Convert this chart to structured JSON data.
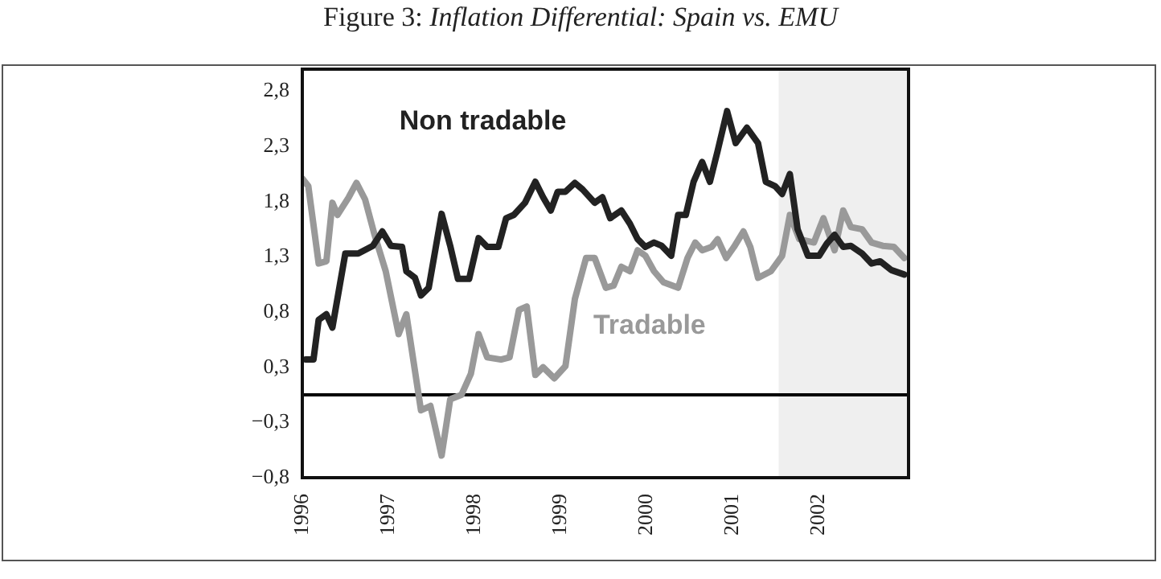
{
  "chart_data": {
    "type": "line",
    "title": "Figure 3: Inflation Differential: Spain vs. EMU",
    "xlim": [
      1996,
      2003.05
    ],
    "xticks": [
      1996,
      1997,
      1998,
      1999,
      2000,
      2001,
      2002
    ],
    "ylim": [
      -0.75,
      2.95
    ],
    "yticks": [
      {
        "value": -0.75,
        "label": "−0,8"
      },
      {
        "value": -0.25,
        "label": "−0,3"
      },
      {
        "value": 0.25,
        "label": "0,3"
      },
      {
        "value": 0.75,
        "label": "0,8"
      },
      {
        "value": 1.25,
        "label": "1,3"
      },
      {
        "value": 1.75,
        "label": "1,8"
      },
      {
        "value": 2.25,
        "label": "2,3"
      },
      {
        "value": 2.75,
        "label": "2,8"
      }
    ],
    "grid": false,
    "legend": false,
    "marker": "none",
    "line_style": "solid",
    "ref_lines": [
      {
        "axis": "y",
        "value": 0,
        "color": "#000000"
      }
    ],
    "bands": [
      {
        "axis": "x",
        "from": 2001.54,
        "to": 2003.05,
        "color": "#efefef"
      }
    ],
    "series": [
      {
        "name": "Non tradable",
        "color": "#222222",
        "x": [
          1996.04,
          1996.13,
          1996.19,
          1996.28,
          1996.35,
          1996.5,
          1996.65,
          1996.82,
          1996.93,
          1997.03,
          1997.16,
          1997.21,
          1997.31,
          1997.38,
          1997.47,
          1997.62,
          1997.72,
          1997.81,
          1997.94,
          1998.05,
          1998.15,
          1998.28,
          1998.37,
          1998.46,
          1998.59,
          1998.71,
          1998.8,
          1998.89,
          1998.97,
          1999.06,
          1999.17,
          1999.26,
          1999.4,
          1999.49,
          1999.58,
          1999.71,
          1999.81,
          1999.9,
          1999.99,
          2000.09,
          2000.18,
          2000.29,
          2000.37,
          2000.46,
          2000.55,
          2000.65,
          2000.74,
          2000.83,
          2000.94,
          2001.04,
          2001.17,
          2001.3,
          2001.39,
          2001.5,
          2001.58,
          2001.67,
          2001.76,
          2001.88,
          2002.01,
          2002.1,
          2002.19,
          2002.29,
          2002.38,
          2002.51,
          2002.62,
          2002.72,
          2002.85,
          2003.0
        ],
        "values": [
          0.32,
          0.32,
          0.68,
          0.73,
          0.61,
          1.28,
          1.28,
          1.35,
          1.48,
          1.35,
          1.34,
          1.12,
          1.06,
          0.9,
          0.97,
          1.64,
          1.35,
          1.05,
          1.05,
          1.42,
          1.34,
          1.34,
          1.6,
          1.63,
          1.74,
          1.93,
          1.79,
          1.67,
          1.84,
          1.84,
          1.92,
          1.86,
          1.74,
          1.79,
          1.6,
          1.67,
          1.55,
          1.41,
          1.34,
          1.38,
          1.35,
          1.26,
          1.63,
          1.63,
          1.93,
          2.11,
          1.93,
          2.21,
          2.57,
          2.28,
          2.42,
          2.28,
          1.93,
          1.89,
          1.82,
          2.0,
          1.5,
          1.26,
          1.26,
          1.37,
          1.45,
          1.34,
          1.35,
          1.28,
          1.19,
          1.21,
          1.13,
          1.09
        ]
      },
      {
        "name": "Tradable",
        "color": "#999999",
        "x": [
          1996.0,
          1996.07,
          1996.19,
          1996.28,
          1996.35,
          1996.41,
          1996.54,
          1996.63,
          1996.73,
          1996.84,
          1996.97,
          1997.12,
          1997.21,
          1997.38,
          1997.49,
          1997.62,
          1997.72,
          1997.85,
          1997.96,
          1998.05,
          1998.15,
          1998.31,
          1998.41,
          1998.52,
          1998.61,
          1998.71,
          1998.8,
          1998.93,
          1999.06,
          1999.17,
          1999.3,
          1999.4,
          1999.53,
          1999.62,
          1999.71,
          1999.81,
          1999.9,
          1999.99,
          2000.09,
          2000.2,
          2000.37,
          2000.48,
          2000.57,
          2000.65,
          2000.76,
          2000.83,
          2000.93,
          2001.02,
          2001.13,
          2001.21,
          2001.3,
          2001.45,
          2001.58,
          2001.67,
          2001.78,
          2001.95,
          2002.06,
          2002.19,
          2002.29,
          2002.38,
          2002.51,
          2002.62,
          2002.75,
          2002.88,
          2003.0
        ],
        "values": [
          1.96,
          1.89,
          1.19,
          1.21,
          1.74,
          1.63,
          1.79,
          1.92,
          1.77,
          1.45,
          1.12,
          0.55,
          0.73,
          -0.14,
          -0.1,
          -0.55,
          -0.04,
          0.0,
          0.19,
          0.55,
          0.34,
          0.32,
          0.34,
          0.77,
          0.8,
          0.18,
          0.25,
          0.15,
          0.26,
          0.87,
          1.24,
          1.24,
          0.97,
          0.99,
          1.16,
          1.12,
          1.31,
          1.26,
          1.12,
          1.02,
          0.97,
          1.24,
          1.38,
          1.31,
          1.34,
          1.41,
          1.24,
          1.34,
          1.48,
          1.34,
          1.06,
          1.12,
          1.26,
          1.63,
          1.41,
          1.38,
          1.6,
          1.31,
          1.67,
          1.52,
          1.5,
          1.38,
          1.35,
          1.34,
          1.24
        ]
      }
    ]
  }
}
